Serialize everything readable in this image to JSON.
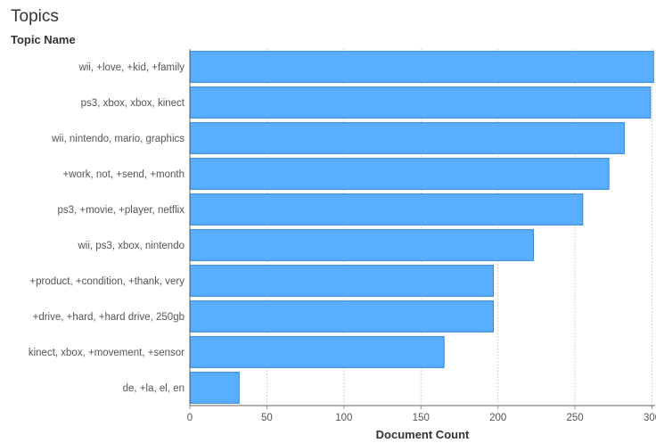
{
  "chart_data": {
    "type": "bar",
    "orientation": "horizontal",
    "title": "Topics",
    "ylabel": "Topic Name",
    "xlabel": "Document Count",
    "categories": [
      "wii, +love, +kid, +family",
      "ps3, xbox, xbox, kinect",
      "wii, nintendo, mario, graphics",
      "+work, not, +send, +month",
      "ps3, +movie, +player, netflix",
      "wii, ps3, xbox, nintendo",
      "+product, +condition, +thank, very",
      "+drive, +hard, +hard drive, 250gb",
      "kinect, xbox, +movement, +sensor",
      "de, +la, el, en"
    ],
    "values": [
      301,
      299,
      282,
      272,
      255,
      223,
      197,
      197,
      165,
      32
    ],
    "xlim": [
      0,
      302
    ],
    "xticks": [
      0,
      50,
      100,
      150,
      200,
      250,
      300
    ],
    "grid": true,
    "bar_color": "#5aaeff",
    "bar_edge_color": "#2f86d8"
  }
}
